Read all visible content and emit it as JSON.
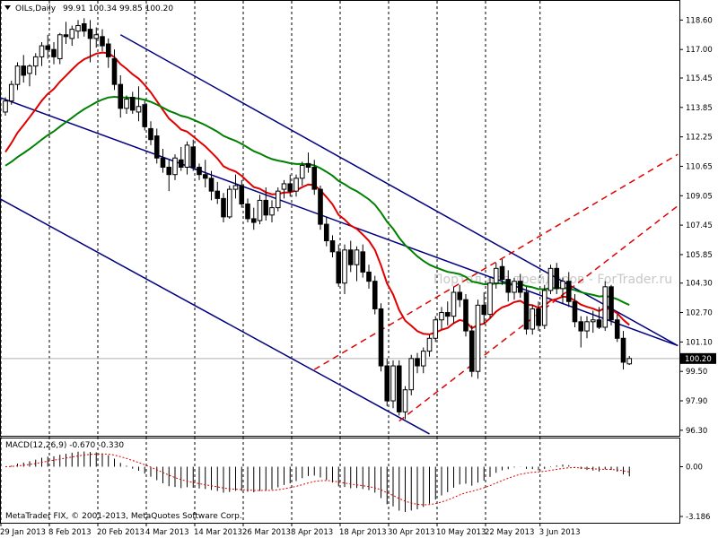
{
  "window": {
    "symbol_label": "OILs,Daily",
    "ohlc_label": "99.91 100.34 99.85 100.20",
    "current_price_tag": "100.20",
    "watermark": "Портал для трейдеров - ForTrader.ru",
    "copyright": "MetaTrader FIX, © 2001-2013, MetaQuotes Software Corp."
  },
  "macd": {
    "label": "MACD(12,26,9) -0.670 -0.330",
    "scale_labels": [
      "0.00",
      "-3.186"
    ]
  },
  "colors": {
    "up_candle": "#ffffff",
    "down_candle": "#000000",
    "ma_fast": "#e00000",
    "ma_slow": "#008000",
    "channel": "#000080",
    "dashed_channel": "#e00000",
    "macd_signal": "#e00000",
    "price_tag_bg": "#000000",
    "price_tag_text": "#ffffff"
  },
  "chart_data": {
    "type": "candlestick",
    "price_axis_ticks": [
      "118.60",
      "117.00",
      "115.45",
      "113.85",
      "112.25",
      "110.65",
      "109.05",
      "107.45",
      "105.85",
      "104.30",
      "102.70",
      "101.10",
      "99.50",
      "97.90",
      "96.30"
    ],
    "date_axis_ticks": [
      "29 Jan 2013",
      "8 Feb 2013",
      "20 Feb 2013",
      "4 Mar 2013",
      "14 Mar 2013",
      "26 Mar 2013",
      "8 Apr 2013",
      "18 Apr 2013",
      "30 Apr 2013",
      "10 May 2013",
      "22 May 2013",
      "3 Jun 2013"
    ],
    "ylim": [
      96.0,
      119.3
    ],
    "macd_ylim": [
      -3.6,
      1.2
    ],
    "candles": [
      [
        113.6,
        114.4,
        113.4,
        114.2
      ],
      [
        114.2,
        115.3,
        114.0,
        115.1
      ],
      [
        115.1,
        116.3,
        114.8,
        116.1
      ],
      [
        116.1,
        116.7,
        115.2,
        115.6
      ],
      [
        115.7,
        116.2,
        115.0,
        116.1
      ],
      [
        116.1,
        116.8,
        115.6,
        116.6
      ],
      [
        116.6,
        117.4,
        116.1,
        117.2
      ],
      [
        117.2,
        117.8,
        116.5,
        117.0
      ],
      [
        117.0,
        117.4,
        116.2,
        116.6
      ],
      [
        116.5,
        117.9,
        116.2,
        117.8
      ],
      [
        117.8,
        118.5,
        117.3,
        117.7
      ],
      [
        117.6,
        118.3,
        117.2,
        118.1
      ],
      [
        118.0,
        118.6,
        117.6,
        118.3
      ],
      [
        118.4,
        118.7,
        117.7,
        118.0
      ],
      [
        118.1,
        118.6,
        116.3,
        117.6
      ],
      [
        117.6,
        118.2,
        117.1,
        117.8
      ],
      [
        117.7,
        118.1,
        116.9,
        117.2
      ],
      [
        117.3,
        117.6,
        116.0,
        116.6
      ],
      [
        116.5,
        117.0,
        114.8,
        115.1
      ],
      [
        115.1,
        115.6,
        113.3,
        113.8
      ],
      [
        113.8,
        114.5,
        113.5,
        114.3
      ],
      [
        114.4,
        114.7,
        113.5,
        113.7
      ],
      [
        113.6,
        115.0,
        113.1,
        113.9
      ],
      [
        114.0,
        114.2,
        112.6,
        112.8
      ],
      [
        112.7,
        113.1,
        111.8,
        112.1
      ],
      [
        112.3,
        112.7,
        110.8,
        111.1
      ],
      [
        111.1,
        111.6,
        110.3,
        110.6
      ],
      [
        110.6,
        111.0,
        109.3,
        110.2
      ],
      [
        110.2,
        111.3,
        109.9,
        111.1
      ],
      [
        111.0,
        111.7,
        110.4,
        110.6
      ],
      [
        110.6,
        112.0,
        110.2,
        111.8
      ],
      [
        111.7,
        112.1,
        110.4,
        110.6
      ],
      [
        110.6,
        110.8,
        109.9,
        110.2
      ],
      [
        110.2,
        111.0,
        109.5,
        110.0
      ],
      [
        110.0,
        110.4,
        108.8,
        109.3
      ],
      [
        109.3,
        109.8,
        108.6,
        108.9
      ],
      [
        108.9,
        109.2,
        107.6,
        107.9
      ],
      [
        107.9,
        109.6,
        107.8,
        109.4
      ],
      [
        109.4,
        110.2,
        108.9,
        109.6
      ],
      [
        109.6,
        109.9,
        108.4,
        108.6
      ],
      [
        108.6,
        108.9,
        107.6,
        107.8
      ],
      [
        107.8,
        108.4,
        107.2,
        107.6
      ],
      [
        107.7,
        109.1,
        107.5,
        108.8
      ],
      [
        108.8,
        109.5,
        107.7,
        108.0
      ],
      [
        108.0,
        108.8,
        107.6,
        108.4
      ],
      [
        108.4,
        109.5,
        108.2,
        109.3
      ],
      [
        109.4,
        109.9,
        108.9,
        109.7
      ],
      [
        109.7,
        110.2,
        109.0,
        109.3
      ],
      [
        109.3,
        110.2,
        109.0,
        110.0
      ],
      [
        110.0,
        110.9,
        109.6,
        110.7
      ],
      [
        110.8,
        111.4,
        110.3,
        110.6
      ],
      [
        110.6,
        111.0,
        109.1,
        109.4
      ],
      [
        109.4,
        109.6,
        107.2,
        107.5
      ],
      [
        107.5,
        107.9,
        106.3,
        106.6
      ],
      [
        106.6,
        106.9,
        105.7,
        106.0
      ],
      [
        106.0,
        106.4,
        104.1,
        104.3
      ],
      [
        104.3,
        106.4,
        103.7,
        106.1
      ],
      [
        106.1,
        106.6,
        104.9,
        105.3
      ],
      [
        105.3,
        106.3,
        104.4,
        106.1
      ],
      [
        106.0,
        106.4,
        104.6,
        104.9
      ],
      [
        104.9,
        105.3,
        104.0,
        104.4
      ],
      [
        104.4,
        104.7,
        102.6,
        102.9
      ],
      [
        102.9,
        103.2,
        99.5,
        99.8
      ],
      [
        99.8,
        100.2,
        97.6,
        97.9
      ],
      [
        97.9,
        100.1,
        97.5,
        99.8
      ],
      [
        99.8,
        100.1,
        97.1,
        97.3
      ],
      [
        97.3,
        98.7,
        96.9,
        98.5
      ],
      [
        98.5,
        100.4,
        98.2,
        100.2
      ],
      [
        100.2,
        100.5,
        99.4,
        99.8
      ],
      [
        99.8,
        100.8,
        99.4,
        100.6
      ],
      [
        100.6,
        101.5,
        100.3,
        101.3
      ],
      [
        101.3,
        102.5,
        101.1,
        102.3
      ],
      [
        102.3,
        103.0,
        101.8,
        102.7
      ],
      [
        102.7,
        103.3,
        102.0,
        102.5
      ],
      [
        102.5,
        104.1,
        102.1,
        103.8
      ],
      [
        103.8,
        104.2,
        103.0,
        103.4
      ],
      [
        103.4,
        103.7,
        101.4,
        101.7
      ],
      [
        101.7,
        102.0,
        99.2,
        99.5
      ],
      [
        99.5,
        103.4,
        99.1,
        103.1
      ],
      [
        103.1,
        103.8,
        102.1,
        102.6
      ],
      [
        102.6,
        104.6,
        102.4,
        104.3
      ],
      [
        104.3,
        105.4,
        104.0,
        105.1
      ],
      [
        105.2,
        105.6,
        104.2,
        104.5
      ],
      [
        104.5,
        105.0,
        103.3,
        103.8
      ],
      [
        103.8,
        104.6,
        103.4,
        104.4
      ],
      [
        104.4,
        104.8,
        103.5,
        103.8
      ],
      [
        103.8,
        104.1,
        101.5,
        101.8
      ],
      [
        101.8,
        103.1,
        101.5,
        102.9
      ],
      [
        102.9,
        103.3,
        101.7,
        102.0
      ],
      [
        102.0,
        104.2,
        101.8,
        103.9
      ],
      [
        103.9,
        105.3,
        103.7,
        105.1
      ],
      [
        105.1,
        105.4,
        103.7,
        104.0
      ],
      [
        104.0,
        104.6,
        103.2,
        104.4
      ],
      [
        104.4,
        104.9,
        103.0,
        103.3
      ],
      [
        103.3,
        103.7,
        101.9,
        102.2
      ],
      [
        102.2,
        102.5,
        100.8,
        101.7
      ],
      [
        101.7,
        102.5,
        101.3,
        102.2
      ],
      [
        102.2,
        102.8,
        101.6,
        102.3
      ],
      [
        102.3,
        103.0,
        101.8,
        101.9
      ],
      [
        101.9,
        104.4,
        101.7,
        104.1
      ],
      [
        104.1,
        104.2,
        102.0,
        102.3
      ],
      [
        102.3,
        102.6,
        101.1,
        101.3
      ],
      [
        101.3,
        101.7,
        99.6,
        100.0
      ],
      [
        99.91,
        100.34,
        99.85,
        100.2
      ]
    ]
  }
}
